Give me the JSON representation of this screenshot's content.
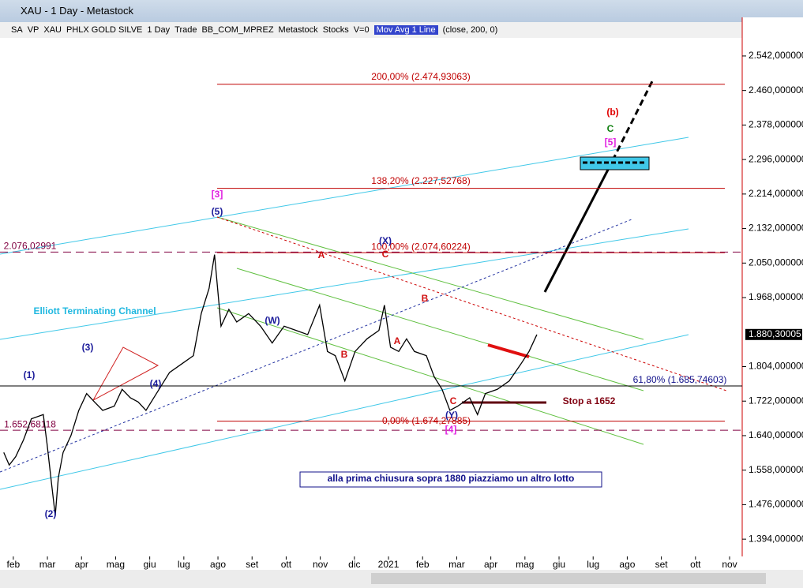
{
  "window": {
    "title": "XAU - 1 Day - Metastock"
  },
  "toolbar": {
    "items": [
      "SA",
      "VP",
      "XAU",
      "PHLX GOLD SILVE",
      "1 Day",
      "Trade",
      "BB_COM_MPREZ",
      "Metastock",
      "Stocks",
      "V=0",
      "Mov Avg 1 Line",
      "(close,  200,  0)"
    ]
  },
  "chart_data": {
    "type": "line",
    "x": [
      -0.28,
      -0.12,
      0.07,
      0.3,
      0.53,
      0.88,
      0.99,
      1.13,
      1.23,
      1.32,
      1.46,
      1.69,
      1.92,
      2.15,
      2.38,
      2.62,
      2.96,
      3.19,
      3.43,
      3.66,
      3.89,
      4.12,
      4.35,
      4.58,
      4.93,
      5.28,
      5.51,
      5.74,
      5.9,
      6.09,
      6.32,
      6.55,
      6.9,
      7.25,
      7.59,
      7.94,
      8.29,
      8.63,
      8.98,
      9.21,
      9.44,
      9.72,
      10.02,
      10.37,
      10.72,
      10.88,
      11.06,
      11.3,
      11.53,
      11.76,
      12.11,
      12.34,
      12.57,
      12.8,
      13.03,
      13.38,
      13.61,
      13.84,
      14.19,
      14.54,
      14.88,
      15.12,
      15.35
    ],
    "series": [
      {
        "color": "#000000",
        "values": [
          1600,
          1570,
          1590,
          1630,
          1680,
          1690,
          1620,
          1520,
          1450,
          1540,
          1600,
          1640,
          1700,
          1740,
          1720,
          1700,
          1710,
          1750,
          1730,
          1720,
          1700,
          1730,
          1760,
          1790,
          1810,
          1830,
          1930,
          1990,
          2070,
          1900,
          1940,
          1910,
          1930,
          1900,
          1860,
          1900,
          1890,
          1880,
          1950,
          1840,
          1830,
          1770,
          1840,
          1870,
          1890,
          1950,
          1850,
          1840,
          1870,
          1840,
          1830,
          1780,
          1750,
          1700,
          1710,
          1730,
          1690,
          1740,
          1750,
          1770,
          1810,
          1840,
          1880
        ]
      }
    ],
    "xlim": [
      -0.39,
      21.37
    ],
    "xticks": [
      {
        "value": 0,
        "label": "feb"
      },
      {
        "value": 1,
        "label": "mar"
      },
      {
        "value": 2,
        "label": "apr"
      },
      {
        "value": 3,
        "label": "mag"
      },
      {
        "value": 4,
        "label": "giu"
      },
      {
        "value": 5,
        "label": "lug"
      },
      {
        "value": 6,
        "label": "ago"
      },
      {
        "value": 7,
        "label": "set"
      },
      {
        "value": 8,
        "label": "ott"
      },
      {
        "value": 9,
        "label": "nov"
      },
      {
        "value": 10,
        "label": "dic"
      },
      {
        "value": 11,
        "label": "2021"
      },
      {
        "value": 12,
        "label": "feb"
      },
      {
        "value": 13,
        "label": "mar"
      },
      {
        "value": 14,
        "label": "apr"
      },
      {
        "value": 15,
        "label": "mag"
      },
      {
        "value": 16,
        "label": "giu"
      },
      {
        "value": 17,
        "label": "lug"
      },
      {
        "value": 18,
        "label": "ago"
      },
      {
        "value": 19,
        "label": "set"
      },
      {
        "value": 20,
        "label": "ott"
      },
      {
        "value": 21,
        "label": "nov"
      }
    ],
    "ylim": [
      1353,
      2585
    ],
    "yticks": [
      {
        "value": 1394,
        "label": "1.394,000000"
      },
      {
        "value": 1476,
        "label": "1.476,000000"
      },
      {
        "value": 1558,
        "label": "1.558,000000"
      },
      {
        "value": 1640,
        "label": "1.640,000000"
      },
      {
        "value": 1722,
        "label": "1.722,000000"
      },
      {
        "value": 1804,
        "label": "1.804,000000"
      },
      {
        "value": 1968,
        "label": "1.968,000000"
      },
      {
        "value": 2050,
        "label": "2.050,000000"
      },
      {
        "value": 2132,
        "label": "2.132,000000"
      },
      {
        "value": 2214,
        "label": "2.214,000000"
      },
      {
        "value": 2296,
        "label": "2.296,000000"
      },
      {
        "value": 2378,
        "label": "2.378,000000"
      },
      {
        "value": 2460,
        "label": "2.460,000000"
      },
      {
        "value": 2542,
        "label": "2.542,000000"
      }
    ],
    "last_value": {
      "value": 1880.30005,
      "label": "1.880,30005"
    },
    "levels": [
      {
        "value": 2474.93063,
        "label": "200,00% (2.474,93063)",
        "color": "#c00000"
      },
      {
        "value": 2227.52768,
        "label": "138,20% (2.227,52768)",
        "color": "#c00000"
      },
      {
        "value": 2074.60224,
        "label": "100,00% (2.074,60224)",
        "color": "#c00000"
      },
      {
        "value": 1674.27885,
        "label": "0,00% (1.674,27885)",
        "color": "#c00000"
      },
      {
        "value": 2076.02991,
        "label": "2.076,02991",
        "color": "#800040"
      },
      {
        "value": 1652.68118,
        "label": "1.652,68118",
        "color": "#800040"
      }
    ],
    "annotations": [
      {
        "text": "[3]",
        "color": "#e020e0"
      },
      {
        "text": "(5)",
        "color": "#1a1a9a"
      },
      {
        "text": "(X)",
        "color": "#1a1a9a"
      },
      {
        "text": "A",
        "color": "#d01010"
      },
      {
        "text": "C",
        "color": "#d01010"
      },
      {
        "text": "B",
        "color": "#d01010"
      },
      {
        "text": "A",
        "color": "#d01010"
      },
      {
        "text": "B",
        "color": "#d01010"
      },
      {
        "text": "(W)",
        "color": "#1a1a9a"
      },
      {
        "text": "(1)",
        "color": "#1a1a9a"
      },
      {
        "text": "(3)",
        "color": "#1a1a9a"
      },
      {
        "text": "(4)",
        "color": "#1a1a9a"
      },
      {
        "text": "(2)",
        "color": "#1a1a9a"
      },
      {
        "text": "C",
        "color": "#d01010"
      },
      {
        "text": "(Y)",
        "color": "#1a1a9a"
      },
      {
        "text": "[4]",
        "color": "#e020e0"
      },
      {
        "text": "(b)",
        "color": "#e00000"
      },
      {
        "text": "C",
        "color": "#108010"
      },
      {
        "text": "[5]",
        "color": "#e020e0"
      },
      {
        "text": "Elliott Terminating Channel",
        "color": "#20b8e0"
      },
      {
        "text": "Stop a 1652",
        "color": "#800010"
      },
      {
        "text": "alla prima chiusura sopra 1880 piazziamo un altro lotto",
        "color": "#10108a"
      },
      {
        "text": "61,80% (1.685,74603)",
        "color": "#10108a"
      }
    ]
  }
}
